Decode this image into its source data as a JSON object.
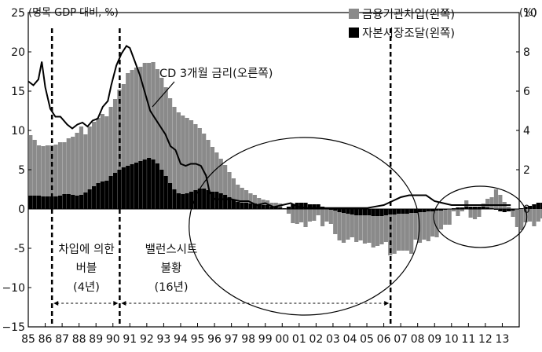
{
  "chart_data": {
    "type": "bar",
    "title": "",
    "left_axis_unit": "(명목 GDP 대비, %)",
    "right_axis_unit": "(%)",
    "ylim_left": [
      -15,
      25
    ],
    "ylim_right": [
      -6,
      10
    ],
    "yticks_left": [
      "25",
      "20",
      "15",
      "10",
      "5",
      "0",
      "-5",
      "−10",
      "−15"
    ],
    "yticks_right": [
      "10",
      "8",
      "6",
      "4",
      "2",
      "0"
    ],
    "x_range": [
      1985,
      2014
    ],
    "xtick_labels": [
      "85",
      "86",
      "87",
      "88",
      "89",
      "90",
      "91",
      "92",
      "93",
      "94",
      "95",
      "96",
      "97",
      "98",
      "99",
      "00",
      "01",
      "02",
      "03",
      "04",
      "05",
      "06",
      "07",
      "08",
      "09",
      "10",
      "11",
      "12",
      "13"
    ],
    "colors": {
      "financial": "#8a8a8a",
      "capital": "#000000",
      "rate_line": "#000000",
      "ellipse": "#000000"
    },
    "series": [
      {
        "name": "금융기관차입(왼쪽)",
        "axis": "left",
        "type": "stacked_bar",
        "color": "#8a8a8a",
        "values": [
          7.7,
          7.1,
          6.4,
          6.4,
          6.5,
          6.5,
          6.6,
          6.8,
          6.6,
          7.1,
          7.4,
          8.0,
          8.7,
          7.4,
          8.0,
          8.2,
          8.3,
          8.6,
          8.2,
          8.8,
          9.4,
          10.2,
          10.6,
          11.8,
          12.0,
          12.1,
          12.0,
          12.3,
          12.1,
          12.4,
          12.0,
          11.7,
          11.3,
          10.8,
          10.5,
          10.3,
          10.0,
          9.6,
          9.1,
          8.4,
          7.7,
          7.0,
          6.4,
          5.7,
          5.0,
          4.4,
          3.8,
          3.2,
          2.7,
          2.2,
          1.9,
          1.6,
          1.3,
          1.1,
          0.8,
          0.7,
          0.6,
          0.5,
          0.5,
          0.5,
          0.0,
          -0.6,
          -1.8,
          -1.9,
          -1.7,
          -2.3,
          -1.6,
          -1.5,
          -0.8,
          -2.2,
          -1.6,
          -1.8,
          -3.0,
          -3.6,
          -3.8,
          -3.3,
          -2.9,
          -3.4,
          -3.2,
          -3.6,
          -3.5,
          -4.0,
          -3.8,
          -3.6,
          -3.4,
          -5.2,
          -5.0,
          -4.7,
          -4.7,
          -4.7,
          -5.2,
          -3.4,
          -3.9,
          -3.5,
          -3.8,
          -3.2,
          -3.4,
          -2.4,
          -1.9,
          -2.0,
          -0.3,
          -0.9,
          -0.3,
          0.8,
          -1.1,
          -1.3,
          -1.0,
          0.4,
          1.1,
          1.4,
          2.5,
          1.8,
          0.9,
          0.3,
          -0.8,
          -2.3,
          -2.7,
          -1.7,
          -1.6,
          -2.2,
          -1.6,
          -1.2,
          -1.1,
          -0.8,
          -0.6,
          -0.2,
          -0.4,
          -0.3,
          0.9
        ]
      },
      {
        "name": "자본시장조달(왼쪽)",
        "axis": "left",
        "type": "stacked_bar",
        "color": "#000000",
        "values": [
          1.7,
          1.7,
          1.7,
          1.6,
          1.6,
          1.6,
          1.6,
          1.7,
          1.9,
          1.9,
          1.8,
          1.7,
          1.8,
          2.1,
          2.5,
          2.9,
          3.3,
          3.5,
          3.6,
          4.2,
          4.6,
          5.0,
          5.3,
          5.5,
          5.7,
          5.9,
          6.1,
          6.3,
          6.5,
          6.3,
          5.8,
          5.0,
          4.2,
          3.3,
          2.5,
          2.0,
          1.9,
          2.0,
          2.2,
          2.4,
          2.6,
          2.6,
          2.4,
          2.2,
          2.2,
          2.0,
          1.8,
          1.5,
          1.2,
          0.9,
          0.8,
          0.8,
          0.7,
          0.7,
          0.6,
          0.5,
          0.5,
          0.3,
          0.3,
          0.2,
          0.1,
          0.3,
          0.6,
          0.8,
          0.8,
          0.8,
          0.6,
          0.6,
          0.6,
          0.3,
          0.1,
          -0.1,
          -0.2,
          -0.4,
          -0.5,
          -0.6,
          -0.7,
          -0.8,
          -0.8,
          -0.8,
          -0.8,
          -0.9,
          -0.9,
          -0.9,
          -0.8,
          -0.7,
          -0.7,
          -0.6,
          -0.6,
          -0.6,
          -0.5,
          -0.5,
          -0.4,
          -0.4,
          -0.3,
          -0.3,
          -0.2,
          -0.2,
          -0.1,
          0.0,
          0.1,
          0.2,
          0.2,
          0.3,
          0.3,
          0.3,
          0.3,
          0.3,
          0.2,
          0.1,
          -0.1,
          -0.3,
          -0.4,
          -0.3,
          -0.2,
          0.0,
          0.1,
          0.3,
          0.4,
          0.6,
          0.8,
          0.8,
          0.7,
          0.6,
          0.4,
          0.2,
          0.2,
          0.0,
          -0.2
        ]
      },
      {
        "name": "CD 3개월 금리(오른쪽)",
        "axis": "right",
        "type": "line",
        "color": "#000000",
        "points": [
          [
            1985.0,
            6.5
          ],
          [
            1985.3,
            6.3
          ],
          [
            1985.6,
            6.6
          ],
          [
            1985.8,
            7.5
          ],
          [
            1986.0,
            6.2
          ],
          [
            1986.3,
            5.1
          ],
          [
            1986.6,
            4.7
          ],
          [
            1986.9,
            4.7
          ],
          [
            1987.3,
            4.3
          ],
          [
            1987.6,
            4.1
          ],
          [
            1987.9,
            4.3
          ],
          [
            1988.2,
            4.4
          ],
          [
            1988.5,
            4.2
          ],
          [
            1988.8,
            4.5
          ],
          [
            1989.1,
            4.6
          ],
          [
            1989.4,
            5.2
          ],
          [
            1989.7,
            5.5
          ],
          [
            1989.9,
            6.3
          ],
          [
            1990.2,
            7.3
          ],
          [
            1990.5,
            7.9
          ],
          [
            1990.8,
            8.3
          ],
          [
            1991.0,
            8.2
          ],
          [
            1991.3,
            7.5
          ],
          [
            1991.6,
            6.8
          ],
          [
            1991.9,
            5.9
          ],
          [
            1992.2,
            5.0
          ],
          [
            1992.5,
            4.6
          ],
          [
            1992.8,
            4.2
          ],
          [
            1993.1,
            3.8
          ],
          [
            1993.4,
            3.2
          ],
          [
            1993.7,
            3.0
          ],
          [
            1994.0,
            2.3
          ],
          [
            1994.3,
            2.2
          ],
          [
            1994.6,
            2.3
          ],
          [
            1994.9,
            2.3
          ],
          [
            1995.2,
            2.2
          ],
          [
            1995.5,
            1.7
          ],
          [
            1995.7,
            0.9
          ],
          [
            1996.0,
            0.5
          ],
          [
            1996.5,
            0.5
          ],
          [
            1997.0,
            0.5
          ],
          [
            1997.5,
            0.4
          ],
          [
            1998.0,
            0.4
          ],
          [
            1998.5,
            0.2
          ],
          [
            1999.0,
            0.3
          ],
          [
            1999.5,
            0.1
          ],
          [
            2000.0,
            0.2
          ],
          [
            2000.5,
            0.3
          ],
          [
            2001.0,
            0.1
          ],
          [
            2001.5,
            0.05
          ],
          [
            2002.0,
            0.05
          ],
          [
            2003.0,
            0.05
          ],
          [
            2004.0,
            0.05
          ],
          [
            2005.0,
            0.05
          ],
          [
            2006.0,
            0.2
          ],
          [
            2006.5,
            0.4
          ],
          [
            2007.0,
            0.6
          ],
          [
            2007.5,
            0.7
          ],
          [
            2008.0,
            0.7
          ],
          [
            2008.5,
            0.7
          ],
          [
            2009.0,
            0.4
          ],
          [
            2009.5,
            0.3
          ],
          [
            2010.0,
            0.2
          ],
          [
            2011.0,
            0.2
          ],
          [
            2012.0,
            0.2
          ],
          [
            2013.0,
            0.2
          ],
          [
            2013.5,
            0.2
          ]
        ]
      }
    ],
    "legend": {
      "placement": "top-right",
      "entries": [
        "금융기관차입(왼쪽)",
        "자본시장조달(왼쪽)"
      ]
    },
    "annotations": {
      "rate_label": "CD 3개월 금리(오른쪽)",
      "bubble_label_line1": "차입에 의한",
      "bubble_label_line2": "버블",
      "bubble_label_line3": "(4년)",
      "balance_label_line1": "밸런스시트",
      "balance_label_line2": "불황",
      "balance_label_line3": "(16년)",
      "bubble_period": [
        1986.4,
        1990.4
      ],
      "balance_sheet_period": [
        1990.4,
        2006.4
      ]
    }
  }
}
